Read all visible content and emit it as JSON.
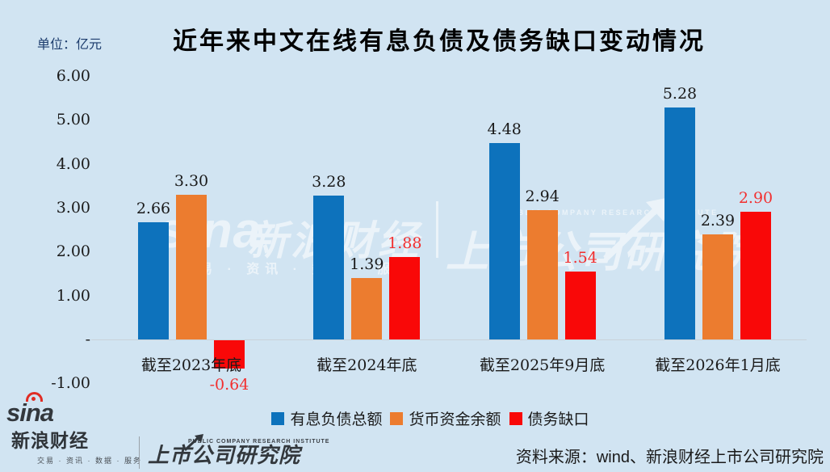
{
  "header": {
    "title": "近年来中文在线有息负债及债务缺口变动情况",
    "unit_label": "单位：亿元"
  },
  "chart_data": {
    "type": "bar",
    "title": "近年来中文在线有息负债及债务缺口变动情况",
    "ylabel": "亿元",
    "categories": [
      "截至2023年底",
      "截至2024年底",
      "截至2025年9月底",
      "截至2026年1月底"
    ],
    "series": [
      {
        "name": "有息负债总额",
        "color": "#0d72bc",
        "label_color": "#1a1a1a",
        "values": [
          2.66,
          3.28,
          4.48,
          5.28
        ]
      },
      {
        "name": "货币资金余额",
        "color": "#ec7c2f",
        "label_color": "#1a1a1a",
        "values": [
          3.3,
          1.39,
          2.94,
          2.39
        ]
      },
      {
        "name": "债务缺口",
        "color": "#f90808",
        "label_color": "#f22f2f",
        "values": [
          -0.64,
          1.88,
          1.54,
          2.9
        ]
      }
    ],
    "ylim": [
      -1,
      6
    ],
    "yticks": [
      {
        "label": "6.00",
        "value": 6
      },
      {
        "label": "5.00",
        "value": 5
      },
      {
        "label": "4.00",
        "value": 4
      },
      {
        "label": "3.00",
        "value": 3
      },
      {
        "label": "2.00",
        "value": 2
      },
      {
        "label": "1.00",
        "value": 1
      },
      {
        "label": "-",
        "value": 0
      },
      {
        "label": "-1.00",
        "value": -1
      }
    ],
    "grid": false,
    "legend_position": "bottom",
    "value_labels": true
  },
  "watermark": {
    "sina": "sina",
    "brand": "新浪财经",
    "tagline": "交易 · 资讯 · 数据 · 服务",
    "institute_en": "PUBLIC COMPANY RESEARCH INSTITUTE",
    "institute": "上市公司研究院"
  },
  "footer": {
    "sina_word": "sina",
    "sina_brand": "新浪财经",
    "sina_tagline": "交易 · 资讯 · 数据 · 服务",
    "institute_en": "PUBLIC COMPANY RESEARCH INSTITUTE",
    "institute": "上市公司研究院",
    "source": "资料来源：wind、新浪财经上市公司研究院"
  },
  "colors": {
    "background": "#d1e4f2",
    "axis_line": "#c9d2d9",
    "sina_red": "#e02c24"
  }
}
